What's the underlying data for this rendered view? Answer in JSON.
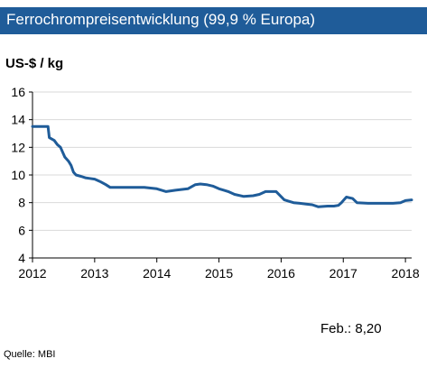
{
  "header": {
    "title": "Ferrochrompreisentwicklung (99,9 % Europa)"
  },
  "footer": {
    "current_value": "Feb.: 8,20",
    "source": "Quelle: MBI"
  },
  "colors": {
    "title_background": "#1f5c99",
    "line": "#1f5c99",
    "grid": "#d9d9d9",
    "axis": "#000000"
  },
  "chart_data": {
    "type": "line",
    "title": "Ferrochrompreisentwicklung (99,9 % Europa)",
    "ylabel": "US-$ / kg",
    "xlabel": "",
    "xlim": [
      2012,
      2018.1
    ],
    "ylim": [
      4,
      16
    ],
    "x_ticks": [
      "2012",
      "2013",
      "2014",
      "2015",
      "2016",
      "2017",
      "2018"
    ],
    "y_ticks": [
      "4",
      "6",
      "8",
      "10",
      "12",
      "14",
      "16"
    ],
    "grid": "horizontal",
    "legend": "none",
    "series": [
      {
        "name": "",
        "x": [
          2012.0,
          2012.25,
          2012.27,
          2012.35,
          2012.4,
          2012.45,
          2012.52,
          2012.58,
          2012.62,
          2012.66,
          2012.7,
          2012.78,
          2012.85,
          2012.92,
          2013.0,
          2013.05,
          2013.1,
          2013.18,
          2013.25,
          2013.4,
          2013.6,
          2013.8,
          2014.0,
          2014.15,
          2014.3,
          2014.5,
          2014.62,
          2014.7,
          2014.8,
          2014.9,
          2015.0,
          2015.08,
          2015.15,
          2015.25,
          2015.4,
          2015.55,
          2015.65,
          2015.75,
          2015.92,
          2016.05,
          2016.12,
          2016.2,
          2016.3,
          2016.4,
          2016.5,
          2016.6,
          2016.75,
          2016.85,
          2016.92,
          2016.97,
          2017.05,
          2017.15,
          2017.22,
          2017.4,
          2017.6,
          2017.8,
          2017.92,
          2018.0,
          2018.1
        ],
        "y": [
          13.5,
          13.5,
          12.7,
          12.5,
          12.2,
          12.0,
          11.3,
          11.0,
          10.7,
          10.2,
          10.0,
          9.9,
          9.8,
          9.75,
          9.7,
          9.6,
          9.5,
          9.3,
          9.1,
          9.1,
          9.1,
          9.1,
          9.0,
          8.8,
          8.9,
          9.0,
          9.3,
          9.35,
          9.3,
          9.2,
          9.0,
          8.9,
          8.8,
          8.6,
          8.45,
          8.5,
          8.6,
          8.8,
          8.8,
          8.2,
          8.1,
          8.0,
          7.95,
          7.9,
          7.85,
          7.7,
          7.75,
          7.75,
          7.8,
          8.0,
          8.4,
          8.3,
          8.0,
          7.95,
          7.95,
          7.95,
          8.0,
          8.15,
          8.2
        ]
      }
    ]
  }
}
